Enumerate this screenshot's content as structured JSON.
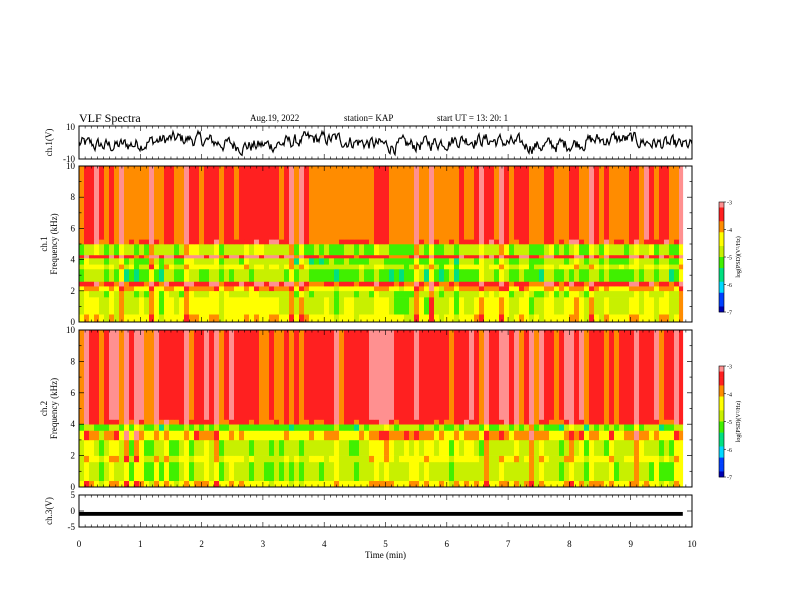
{
  "header": {
    "title": "VLF Spectra",
    "date": "Aug.19, 2022",
    "station": "station= KAP",
    "start": "start  UT  =   13: 20: 1"
  },
  "colors": {
    "colormap": [
      "#0000b0",
      "#0040ff",
      "#00d8ff",
      "#00e080",
      "#40f000",
      "#c8f000",
      "#ffff00",
      "#ff8c00",
      "#ff2020",
      "#ff9090",
      "#ffffff"
    ],
    "trace": "#000000",
    "axis": "#000000"
  },
  "chart_data": [
    {
      "type": "line",
      "name": "ch1-waveform",
      "ylabel": "ch.1(V)",
      "ylim": [
        -10,
        10
      ],
      "yticks": [
        "10",
        "-10"
      ],
      "xlim": [
        0,
        10
      ],
      "trace": "fluctuating waveform, mostly between -6 and 6 V"
    },
    {
      "type": "heatmap",
      "name": "ch1-spectrogram",
      "ylabel": "ch.1\nFrequency (kHz)",
      "ylim": [
        0,
        10
      ],
      "yticks": [
        "0",
        "2",
        "4",
        "6",
        "8",
        "10"
      ],
      "xlim": [
        0,
        9.85
      ],
      "colorbar": {
        "label": "log(PSD)(V²/Hz)",
        "range": [
          -7,
          -3
        ],
        "ticks": [
          "-3",
          "-4",
          "-5",
          "-6",
          "-7"
        ]
      },
      "bands": [
        {
          "from": 0.0,
          "to": 0.5,
          "level": -4.3
        },
        {
          "from": 0.5,
          "to": 1.6,
          "level": -4.6
        },
        {
          "from": 1.6,
          "to": 2.0,
          "level": -4.8
        },
        {
          "from": 2.0,
          "to": 2.3,
          "level": -4.1
        },
        {
          "from": 2.3,
          "to": 2.6,
          "level": -3.5
        },
        {
          "from": 2.6,
          "to": 3.4,
          "level": -5.1
        },
        {
          "from": 3.4,
          "to": 3.7,
          "level": -4.6
        },
        {
          "from": 3.7,
          "to": 4.1,
          "level": -5.0
        },
        {
          "from": 4.1,
          "to": 4.3,
          "level": -3.4
        },
        {
          "from": 4.3,
          "to": 5.0,
          "level": -4.9
        },
        {
          "from": 5.0,
          "to": 5.3,
          "level": -3.6
        },
        {
          "from": 5.3,
          "to": 10.0,
          "level": -3.7
        }
      ]
    },
    {
      "type": "heatmap",
      "name": "ch2-spectrogram",
      "ylabel": "ch.2\nFrequency (kHz)",
      "ylim": [
        0,
        10
      ],
      "yticks": [
        "0",
        "2",
        "4",
        "6",
        "8",
        "10"
      ],
      "xlim": [
        0,
        9.85
      ],
      "colorbar": {
        "label": "log(PSD)(V²/Hz)",
        "range": [
          -7,
          -3
        ],
        "ticks": [
          "-3",
          "-4",
          "-5",
          "-6",
          "-7"
        ]
      },
      "bands": [
        {
          "from": 0.0,
          "to": 0.4,
          "level": -4.3
        },
        {
          "from": 0.4,
          "to": 1.6,
          "level": -4.9
        },
        {
          "from": 1.6,
          "to": 2.0,
          "level": -4.5
        },
        {
          "from": 2.0,
          "to": 3.0,
          "level": -4.8
        },
        {
          "from": 3.0,
          "to": 3.6,
          "level": -4.1
        },
        {
          "from": 3.6,
          "to": 4.0,
          "level": -5.1
        },
        {
          "from": 4.0,
          "to": 4.3,
          "level": -3.6
        },
        {
          "from": 4.3,
          "to": 10.0,
          "level": -3.5
        }
      ]
    },
    {
      "type": "line",
      "name": "ch3-waveform",
      "ylabel": "ch.3(V)",
      "ylim": [
        -5,
        5
      ],
      "yticks": [
        "5",
        "0",
        "-5"
      ],
      "xlim": [
        0,
        10
      ],
      "trace": "thick flat band near -1 V"
    }
  ],
  "x_axis": {
    "label": "Time (min)",
    "ticks": [
      "0",
      "1",
      "2",
      "3",
      "4",
      "5",
      "6",
      "7",
      "8",
      "9",
      "10"
    ]
  }
}
